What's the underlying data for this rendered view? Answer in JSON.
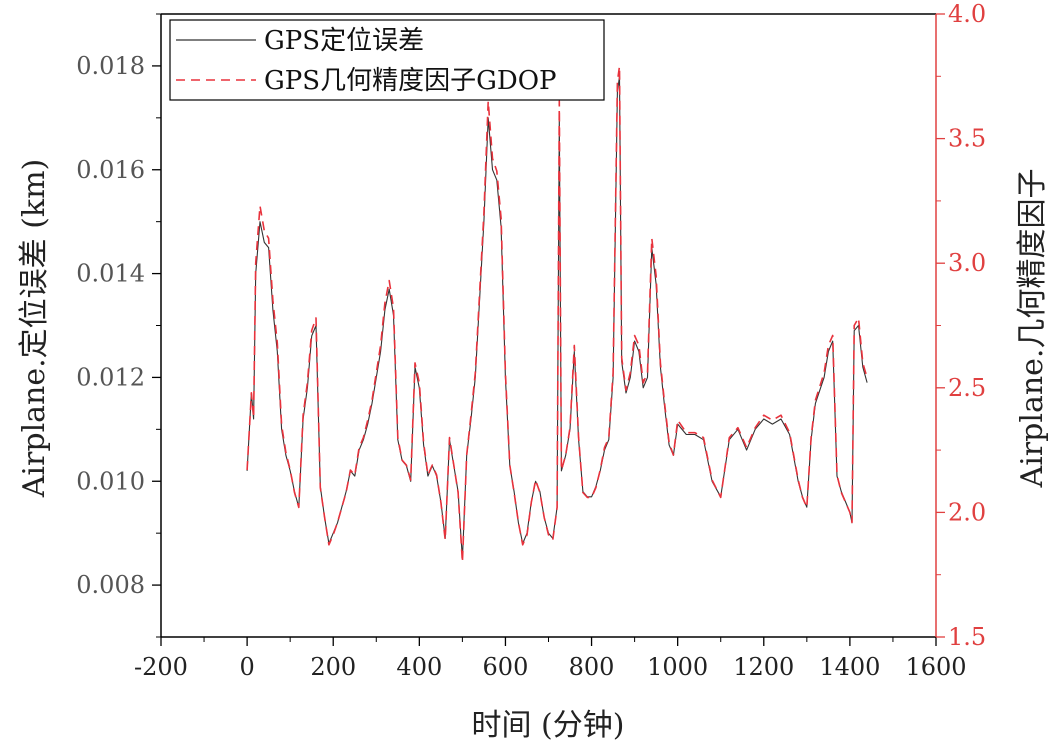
{
  "chart_data": {
    "type": "line",
    "title": "",
    "xlabel": "时间 (分钟)",
    "ylabel_left": "Airplane.定位误差 (km)",
    "ylabel_right": "Airplane.几何精度因子",
    "xlim": [
      -200,
      1600
    ],
    "ylim_left": [
      0.007,
      0.019
    ],
    "ylim_right": [
      1.5,
      4.0
    ],
    "x_ticks": [
      "-200",
      "0",
      "200",
      "400",
      "600",
      "800",
      "1000",
      "1200",
      "1400",
      "1600"
    ],
    "y_left_ticks": [
      "0.008",
      "0.010",
      "0.012",
      "0.014",
      "0.016",
      "0.018"
    ],
    "y_right_ticks": [
      "1.5",
      "2.0",
      "2.5",
      "3.0",
      "3.5",
      "4.0"
    ],
    "grid": false,
    "legend_position": "top-left",
    "colors": {
      "error": "#333333",
      "gdop": "#e8323c",
      "right_axis": "#e04040"
    },
    "series": [
      {
        "name": "GPS定位误差",
        "axis": "left",
        "style": "solid",
        "x": [
          0,
          10,
          15,
          20,
          30,
          40,
          50,
          60,
          70,
          80,
          90,
          100,
          110,
          120,
          130,
          140,
          150,
          160,
          170,
          180,
          190,
          200,
          210,
          220,
          230,
          240,
          250,
          260,
          270,
          280,
          290,
          300,
          310,
          320,
          330,
          340,
          350,
          360,
          370,
          380,
          390,
          400,
          410,
          420,
          430,
          440,
          450,
          460,
          470,
          480,
          490,
          500,
          510,
          520,
          530,
          540,
          550,
          560,
          570,
          580,
          590,
          600,
          610,
          620,
          630,
          640,
          650,
          660,
          670,
          680,
          690,
          700,
          710,
          720,
          725,
          730,
          740,
          750,
          760,
          770,
          780,
          790,
          800,
          810,
          820,
          830,
          840,
          850,
          860,
          865,
          870,
          880,
          890,
          900,
          910,
          920,
          930,
          940,
          950,
          960,
          970,
          980,
          990,
          1000,
          1020,
          1040,
          1060,
          1080,
          1100,
          1120,
          1140,
          1160,
          1180,
          1200,
          1220,
          1240,
          1260,
          1280,
          1290,
          1300,
          1310,
          1320,
          1340,
          1350,
          1360,
          1370,
          1380,
          1390,
          1400,
          1405,
          1410,
          1420,
          1430,
          1440
        ],
        "y": [
          0.0102,
          0.0117,
          0.0112,
          0.014,
          0.015,
          0.0146,
          0.0145,
          0.0133,
          0.0125,
          0.011,
          0.0105,
          0.0102,
          0.0098,
          0.0095,
          0.0112,
          0.0118,
          0.0128,
          0.013,
          0.0099,
          0.0093,
          0.0088,
          0.009,
          0.0092,
          0.0095,
          0.0098,
          0.0102,
          0.0101,
          0.0106,
          0.0108,
          0.0111,
          0.0115,
          0.012,
          0.0125,
          0.0133,
          0.0137,
          0.0132,
          0.0108,
          0.0104,
          0.0103,
          0.01,
          0.0122,
          0.0118,
          0.0107,
          0.0101,
          0.0103,
          0.0101,
          0.0096,
          0.0089,
          0.0108,
          0.0103,
          0.0098,
          0.0085,
          0.0105,
          0.0112,
          0.012,
          0.0135,
          0.015,
          0.017,
          0.016,
          0.0158,
          0.0149,
          0.012,
          0.0103,
          0.0098,
          0.0092,
          0.0088,
          0.009,
          0.0096,
          0.01,
          0.0098,
          0.0093,
          0.009,
          0.0089,
          0.0095,
          0.017,
          0.0102,
          0.0105,
          0.011,
          0.0125,
          0.0108,
          0.0098,
          0.0097,
          0.0097,
          0.0099,
          0.0102,
          0.0106,
          0.0108,
          0.012,
          0.0175,
          0.0178,
          0.0123,
          0.0117,
          0.012,
          0.0127,
          0.0125,
          0.0118,
          0.012,
          0.0145,
          0.0138,
          0.0122,
          0.0114,
          0.0107,
          0.0105,
          0.0111,
          0.0109,
          0.0109,
          0.0108,
          0.01,
          0.0097,
          0.0108,
          0.011,
          0.0106,
          0.011,
          0.0112,
          0.0111,
          0.0112,
          0.0109,
          0.01,
          0.0097,
          0.0095,
          0.0108,
          0.0115,
          0.012,
          0.0125,
          0.0127,
          0.0101,
          0.0098,
          0.0096,
          0.0094,
          0.0092,
          0.0129,
          0.013,
          0.0122,
          0.0119
        ]
      },
      {
        "name": "GPS几何精度因子GDOP",
        "axis": "right",
        "style": "dashed",
        "x": [
          0,
          10,
          15,
          20,
          30,
          40,
          50,
          60,
          70,
          80,
          90,
          100,
          110,
          120,
          130,
          140,
          150,
          160,
          170,
          180,
          190,
          200,
          210,
          220,
          230,
          240,
          250,
          260,
          270,
          280,
          290,
          300,
          310,
          320,
          330,
          340,
          350,
          360,
          370,
          380,
          390,
          400,
          410,
          420,
          430,
          440,
          450,
          460,
          470,
          480,
          490,
          500,
          510,
          520,
          530,
          540,
          550,
          560,
          570,
          580,
          590,
          600,
          610,
          620,
          630,
          640,
          650,
          660,
          670,
          680,
          690,
          700,
          710,
          720,
          725,
          730,
          740,
          750,
          760,
          770,
          780,
          790,
          800,
          810,
          820,
          830,
          840,
          850,
          860,
          865,
          870,
          880,
          890,
          900,
          910,
          920,
          930,
          940,
          950,
          960,
          970,
          980,
          990,
          1000,
          1020,
          1040,
          1060,
          1080,
          1100,
          1120,
          1140,
          1160,
          1180,
          1200,
          1220,
          1240,
          1260,
          1280,
          1290,
          1300,
          1310,
          1320,
          1340,
          1350,
          1360,
          1370,
          1380,
          1390,
          1400,
          1405,
          1410,
          1420,
          1430,
          1440
        ],
        "y": [
          2.17,
          2.48,
          2.38,
          3.0,
          3.23,
          3.13,
          3.1,
          2.85,
          2.68,
          2.35,
          2.24,
          2.17,
          2.08,
          2.02,
          2.39,
          2.52,
          2.73,
          2.78,
          2.1,
          1.98,
          1.87,
          1.91,
          1.96,
          2.02,
          2.08,
          2.17,
          2.15,
          2.26,
          2.3,
          2.37,
          2.45,
          2.56,
          2.67,
          2.84,
          2.93,
          2.82,
          2.3,
          2.21,
          2.19,
          2.13,
          2.6,
          2.52,
          2.28,
          2.15,
          2.19,
          2.15,
          2.04,
          1.89,
          2.3,
          2.19,
          2.08,
          1.8,
          2.23,
          2.39,
          2.56,
          2.88,
          3.2,
          3.65,
          3.42,
          3.37,
          3.18,
          2.56,
          2.19,
          2.08,
          1.96,
          1.87,
          1.91,
          2.04,
          2.13,
          2.08,
          1.98,
          1.91,
          1.89,
          2.02,
          3.65,
          2.17,
          2.23,
          2.34,
          2.67,
          2.3,
          2.08,
          2.06,
          2.06,
          2.1,
          2.17,
          2.26,
          2.3,
          2.56,
          3.73,
          3.79,
          2.62,
          2.49,
          2.56,
          2.71,
          2.67,
          2.52,
          2.56,
          3.1,
          2.95,
          2.6,
          2.43,
          2.28,
          2.23,
          2.37,
          2.32,
          2.32,
          2.3,
          2.13,
          2.06,
          2.3,
          2.34,
          2.26,
          2.34,
          2.39,
          2.37,
          2.39,
          2.32,
          2.13,
          2.06,
          2.02,
          2.3,
          2.45,
          2.56,
          2.67,
          2.71,
          2.15,
          2.08,
          2.04,
          2.0,
          1.96,
          2.75,
          2.78,
          2.6,
          2.54
        ]
      }
    ]
  }
}
